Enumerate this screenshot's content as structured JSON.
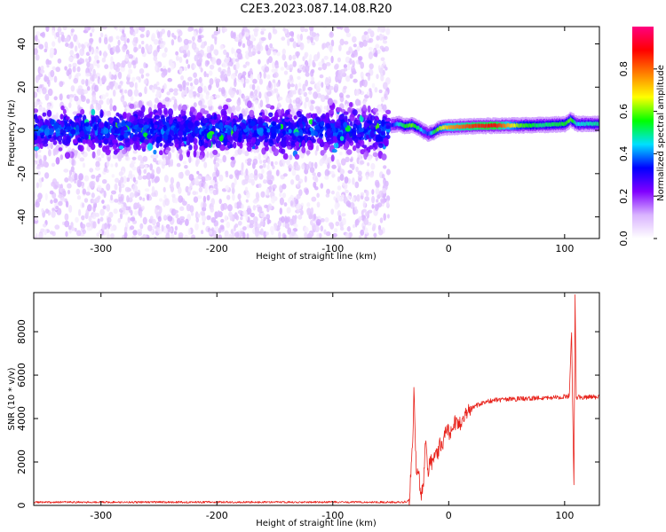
{
  "title": "C2E3.2023.087.14.08.R20",
  "chart_data": [
    {
      "type": "heatmap",
      "name": "spectrogram",
      "xlabel": "Height of straight line (km)",
      "ylabel": "Frequency (Hz)",
      "xlim": [
        -358,
        130
      ],
      "ylim": [
        -50,
        48
      ],
      "x_ticks": [
        -300,
        -200,
        -100,
        0,
        100
      ],
      "x_tick_labels": [
        "-300",
        "-200",
        "-100",
        "0",
        "100"
      ],
      "y_ticks": [
        -40,
        -20,
        0,
        20,
        40
      ],
      "y_tick_labels": [
        "-40",
        "-20",
        "0",
        "20",
        "40"
      ],
      "noise_region_x": [
        -358,
        -52
      ],
      "noise_band_hz": [
        -9,
        9
      ],
      "signal_trace": {
        "x": [
          -50,
          -44,
          -38,
          -32,
          -26,
          -22,
          -18,
          -14,
          -10,
          -6,
          0,
          20,
          40,
          60,
          80,
          100,
          105,
          110,
          130
        ],
        "y": [
          2.5,
          3,
          2,
          2.5,
          1,
          -0.5,
          -1.5,
          -1,
          0.5,
          1.2,
          1.5,
          2,
          2.2,
          2.3,
          2.5,
          3,
          5,
          3,
          3
        ],
        "amplitude": [
          0.3,
          0.45,
          0.55,
          0.6,
          0.5,
          0.4,
          0.35,
          0.5,
          0.6,
          0.65,
          0.75,
          0.85,
          0.9,
          0.6,
          0.5,
          0.55,
          0.6,
          0.45,
          0.5
        ]
      },
      "colorbar": {
        "label": "Normalized spectral amplitude",
        "range": [
          0,
          1
        ],
        "ticks": [
          0.0,
          0.2,
          0.4,
          0.6,
          0.8
        ],
        "tick_labels": [
          "0.0",
          "0.2",
          "0.4",
          "0.6",
          "0.8"
        ],
        "colors": [
          "#ffffff",
          "#d9b3ff",
          "#8000ff",
          "#0000ff",
          "#00e0ff",
          "#00ff00",
          "#ffff00",
          "#ff8000",
          "#ff0000",
          "#ff0080"
        ]
      }
    },
    {
      "type": "line",
      "name": "snr",
      "xlabel": "Height of straight line (km)",
      "ylabel": "SNR (10 * v/v)",
      "xlim": [
        -358,
        130
      ],
      "ylim": [
        0,
        9800
      ],
      "x_ticks": [
        -300,
        -200,
        -100,
        0,
        100
      ],
      "x_tick_labels": [
        "-300",
        "-200",
        "-100",
        "0",
        "100"
      ],
      "y_ticks": [
        0,
        2000,
        4000,
        6000,
        8000
      ],
      "y_tick_labels": [
        "0",
        "2000",
        "4000",
        "6000",
        "8000"
      ],
      "color": "#e8221b",
      "x": [
        -358,
        -300,
        -200,
        -100,
        -40,
        -34,
        -31,
        -30,
        -29,
        -28,
        -26,
        -24,
        -22,
        -20,
        -18,
        -16,
        -14,
        -12,
        -10,
        -8,
        -5,
        -2,
        2,
        5,
        10,
        15,
        20,
        30,
        40,
        60,
        80,
        100,
        104,
        106,
        107,
        108,
        109,
        110,
        111,
        112,
        115,
        120,
        130
      ],
      "y": [
        150,
        150,
        150,
        150,
        150,
        200,
        3000,
        5500,
        3500,
        1500,
        1500,
        500,
        800,
        3000,
        1500,
        2200,
        1800,
        2500,
        2200,
        2800,
        2800,
        3500,
        3300,
        3800,
        3800,
        4300,
        4500,
        4750,
        4850,
        4900,
        4950,
        5000,
        5050,
        8000,
        4200,
        1000,
        9800,
        5000,
        4900,
        5000,
        4950,
        5000,
        5000
      ]
    }
  ]
}
